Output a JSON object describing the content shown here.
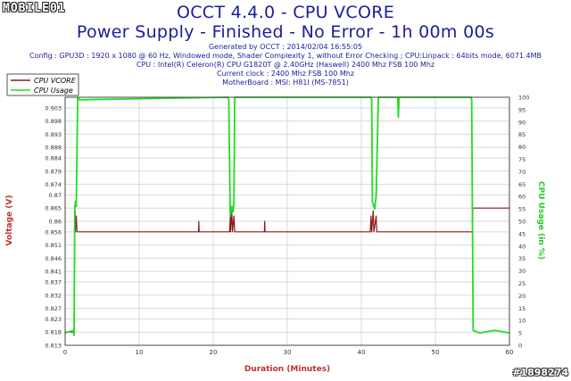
{
  "header": {
    "title": "OCCT 4.4.0 - CPU VCORE",
    "subtitle": "Power Supply - Finished - No Error - 1h 00m 00s",
    "info_lines": [
      "Generated by OCCT : 2014/02/04 16:55:05",
      "Config : GPU3D : 1920 x 1080 @ 60 Hz, Windowed mode, Shader Complexity 1, without Error Checking ; CPU:Linpack : 64bits mode, 6071.4MB",
      "CPU : Intel(R) Celeron(R) CPU G1820T @ 2.40GHz (Haswell) 2400 Mhz FSB 100 Mhz",
      "Current clock : 2400 Mhz FSB 100 Mhz",
      "MotherBoard : MSI: H81I (MS-7851)"
    ]
  },
  "logo_text": "MOBILE01",
  "watermark": "#1898274",
  "chart_data": {
    "type": "line",
    "title": "OCCT 4.4.0 - CPU VCORE",
    "xlabel": "Duration (Minutes)",
    "ylabel": "Voltage (V)",
    "y2label": "CPU Usage (in %)",
    "xlim": [
      0,
      60
    ],
    "ylim": [
      0.813,
      0.907
    ],
    "y2lim": [
      0,
      100
    ],
    "x_ticks": [
      0,
      10,
      20,
      30,
      40,
      50,
      60
    ],
    "y_ticks": [
      0.813,
      0.818,
      0.823,
      0.827,
      0.832,
      0.837,
      0.841,
      0.846,
      0.851,
      0.856,
      0.86,
      0.865,
      0.87,
      0.874,
      0.879,
      0.884,
      0.888,
      0.893,
      0.898,
      0.903
    ],
    "y2_ticks": [
      0,
      5,
      10,
      15,
      20,
      25,
      30,
      35,
      40,
      45,
      50,
      55,
      60,
      65,
      70,
      75,
      80,
      85,
      90,
      95,
      100
    ],
    "grid": true,
    "legend_position": "top-left",
    "colors": {
      "vcore": "#8b1a1a",
      "usage": "#22dd22",
      "title": "#1c1c9c",
      "axis_label": "#c03030"
    },
    "series": [
      {
        "name": "CPU VCORE",
        "axis": "left",
        "points": [
          [
            0.0,
            0.818
          ],
          [
            1.2,
            0.818
          ],
          [
            1.3,
            0.856
          ],
          [
            1.35,
            0.864
          ],
          [
            1.4,
            0.856
          ],
          [
            1.5,
            0.862
          ],
          [
            1.6,
            0.856
          ],
          [
            18.0,
            0.856
          ],
          [
            18.05,
            0.86
          ],
          [
            18.1,
            0.856
          ],
          [
            22.2,
            0.856
          ],
          [
            22.3,
            0.862
          ],
          [
            22.35,
            0.856
          ],
          [
            22.5,
            0.864
          ],
          [
            22.6,
            0.856
          ],
          [
            22.8,
            0.862
          ],
          [
            22.9,
            0.856
          ],
          [
            26.9,
            0.856
          ],
          [
            26.95,
            0.86
          ],
          [
            27.0,
            0.856
          ],
          [
            41.2,
            0.856
          ],
          [
            41.3,
            0.862
          ],
          [
            41.4,
            0.856
          ],
          [
            41.6,
            0.864
          ],
          [
            41.7,
            0.856
          ],
          [
            42.0,
            0.862
          ],
          [
            42.1,
            0.856
          ],
          [
            55.0,
            0.856
          ],
          [
            55.05,
            0.865
          ],
          [
            60.0,
            0.865
          ]
        ]
      },
      {
        "name": "CPU Usage",
        "axis": "right",
        "points": [
          [
            0.0,
            5
          ],
          [
            1.1,
            6
          ],
          [
            1.2,
            4
          ],
          [
            1.3,
            55
          ],
          [
            1.4,
            58
          ],
          [
            1.5,
            56
          ],
          [
            1.7,
            100
          ],
          [
            1.9,
            99
          ],
          [
            22.0,
            100
          ],
          [
            22.1,
            99
          ],
          [
            22.3,
            52
          ],
          [
            22.5,
            56
          ],
          [
            22.7,
            54
          ],
          [
            22.8,
            58
          ],
          [
            22.9,
            100
          ],
          [
            41.3,
            100
          ],
          [
            41.4,
            99
          ],
          [
            41.5,
            58
          ],
          [
            41.8,
            55
          ],
          [
            42.0,
            60
          ],
          [
            42.3,
            100
          ],
          [
            44.9,
            100
          ],
          [
            45.0,
            92
          ],
          [
            45.1,
            100
          ],
          [
            54.8,
            100
          ],
          [
            54.9,
            99
          ],
          [
            55.1,
            6
          ],
          [
            56.0,
            5
          ],
          [
            58.0,
            6
          ],
          [
            60.0,
            5
          ]
        ]
      }
    ]
  }
}
